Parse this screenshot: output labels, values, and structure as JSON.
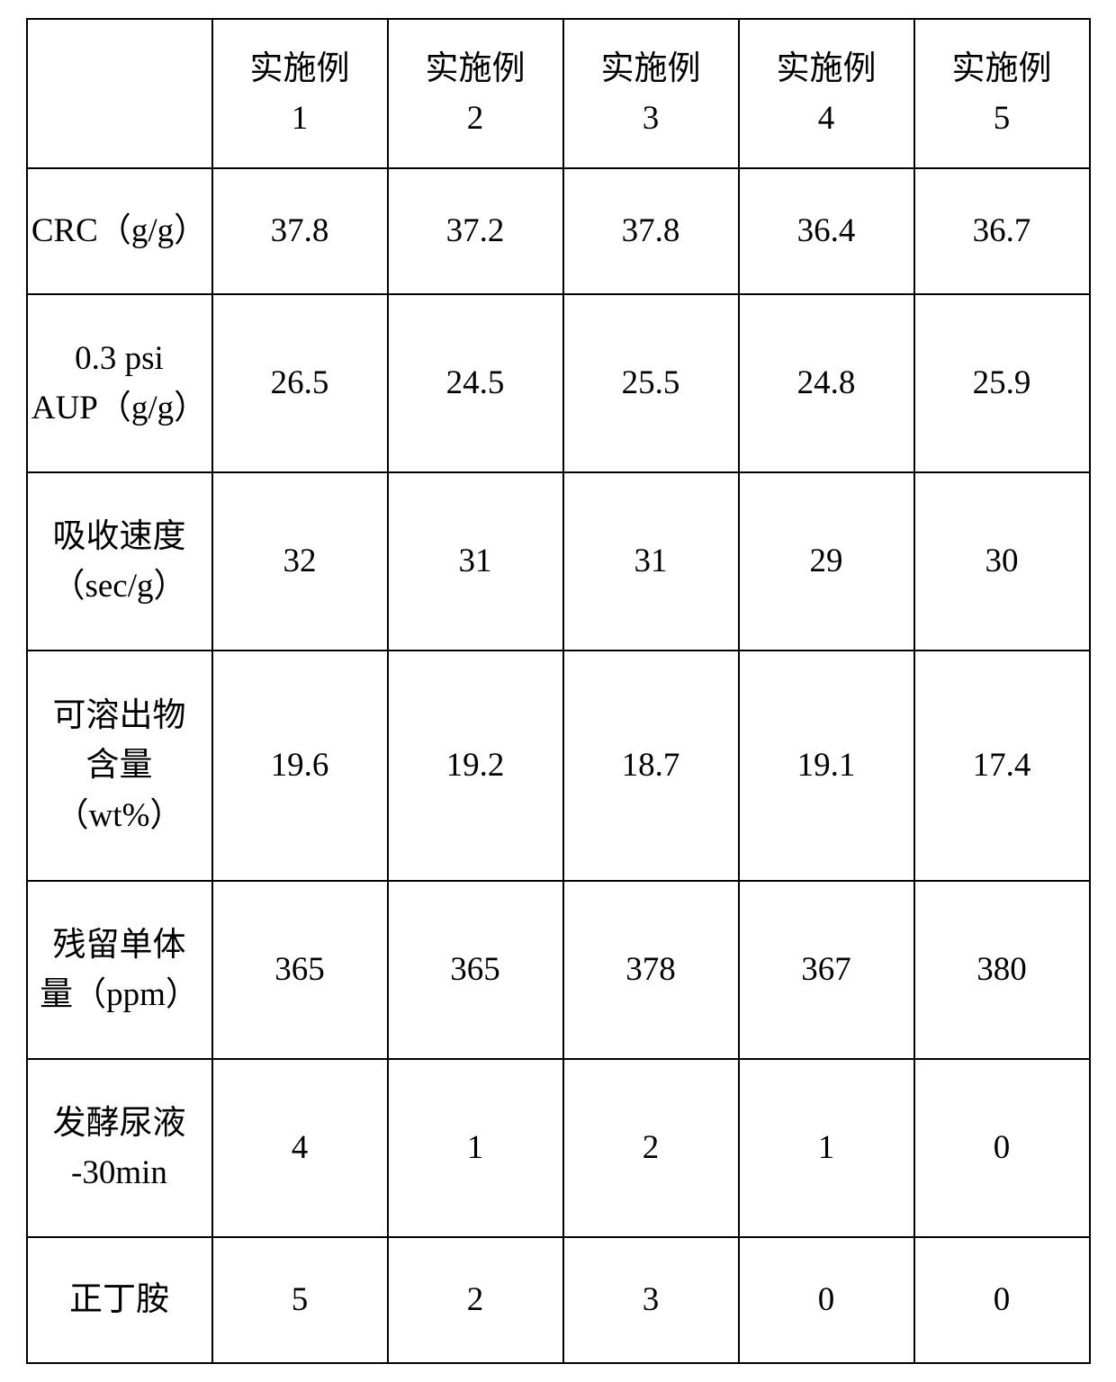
{
  "table": {
    "columns": [
      "",
      "实施例\n1",
      "实施例\n2",
      "实施例\n3",
      "实施例\n4",
      "实施例\n5"
    ],
    "rows": [
      {
        "label": "CRC（g/g）",
        "values": [
          "37.8",
          "37.2",
          "37.8",
          "36.4",
          "36.7"
        ],
        "row_class": "row-crc"
      },
      {
        "label": "0.3 psi\nAUP（g/g）",
        "values": [
          "26.5",
          "24.5",
          "25.5",
          "24.8",
          "25.9"
        ],
        "row_class": "row-aup"
      },
      {
        "label": "吸收速度\n（sec/g）",
        "values": [
          "32",
          "31",
          "31",
          "29",
          "30"
        ],
        "row_class": "row-absorb"
      },
      {
        "label": "可溶出物\n含量\n（wt%）",
        "values": [
          "19.6",
          "19.2",
          "18.7",
          "19.1",
          "17.4"
        ],
        "row_class": "row-extract"
      },
      {
        "label": "残留单体\n量（ppm）",
        "values": [
          "365",
          "365",
          "378",
          "367",
          "380"
        ],
        "row_class": "row-monomer"
      },
      {
        "label": "发酵尿液\n-30min",
        "values": [
          "4",
          "1",
          "2",
          "1",
          "0"
        ],
        "row_class": "row-ferment"
      },
      {
        "label": "正丁胺",
        "values": [
          "5",
          "2",
          "3",
          "0",
          "0"
        ],
        "row_class": "row-butyl"
      }
    ],
    "styling": {
      "border_color": "#000000",
      "border_width": 2,
      "background_color": "#ffffff",
      "text_color": "#000000",
      "font_size": 37,
      "font_family": "SimSun",
      "col_header_width": 206,
      "col_data_width": 195,
      "header_row_height": 166
    }
  }
}
